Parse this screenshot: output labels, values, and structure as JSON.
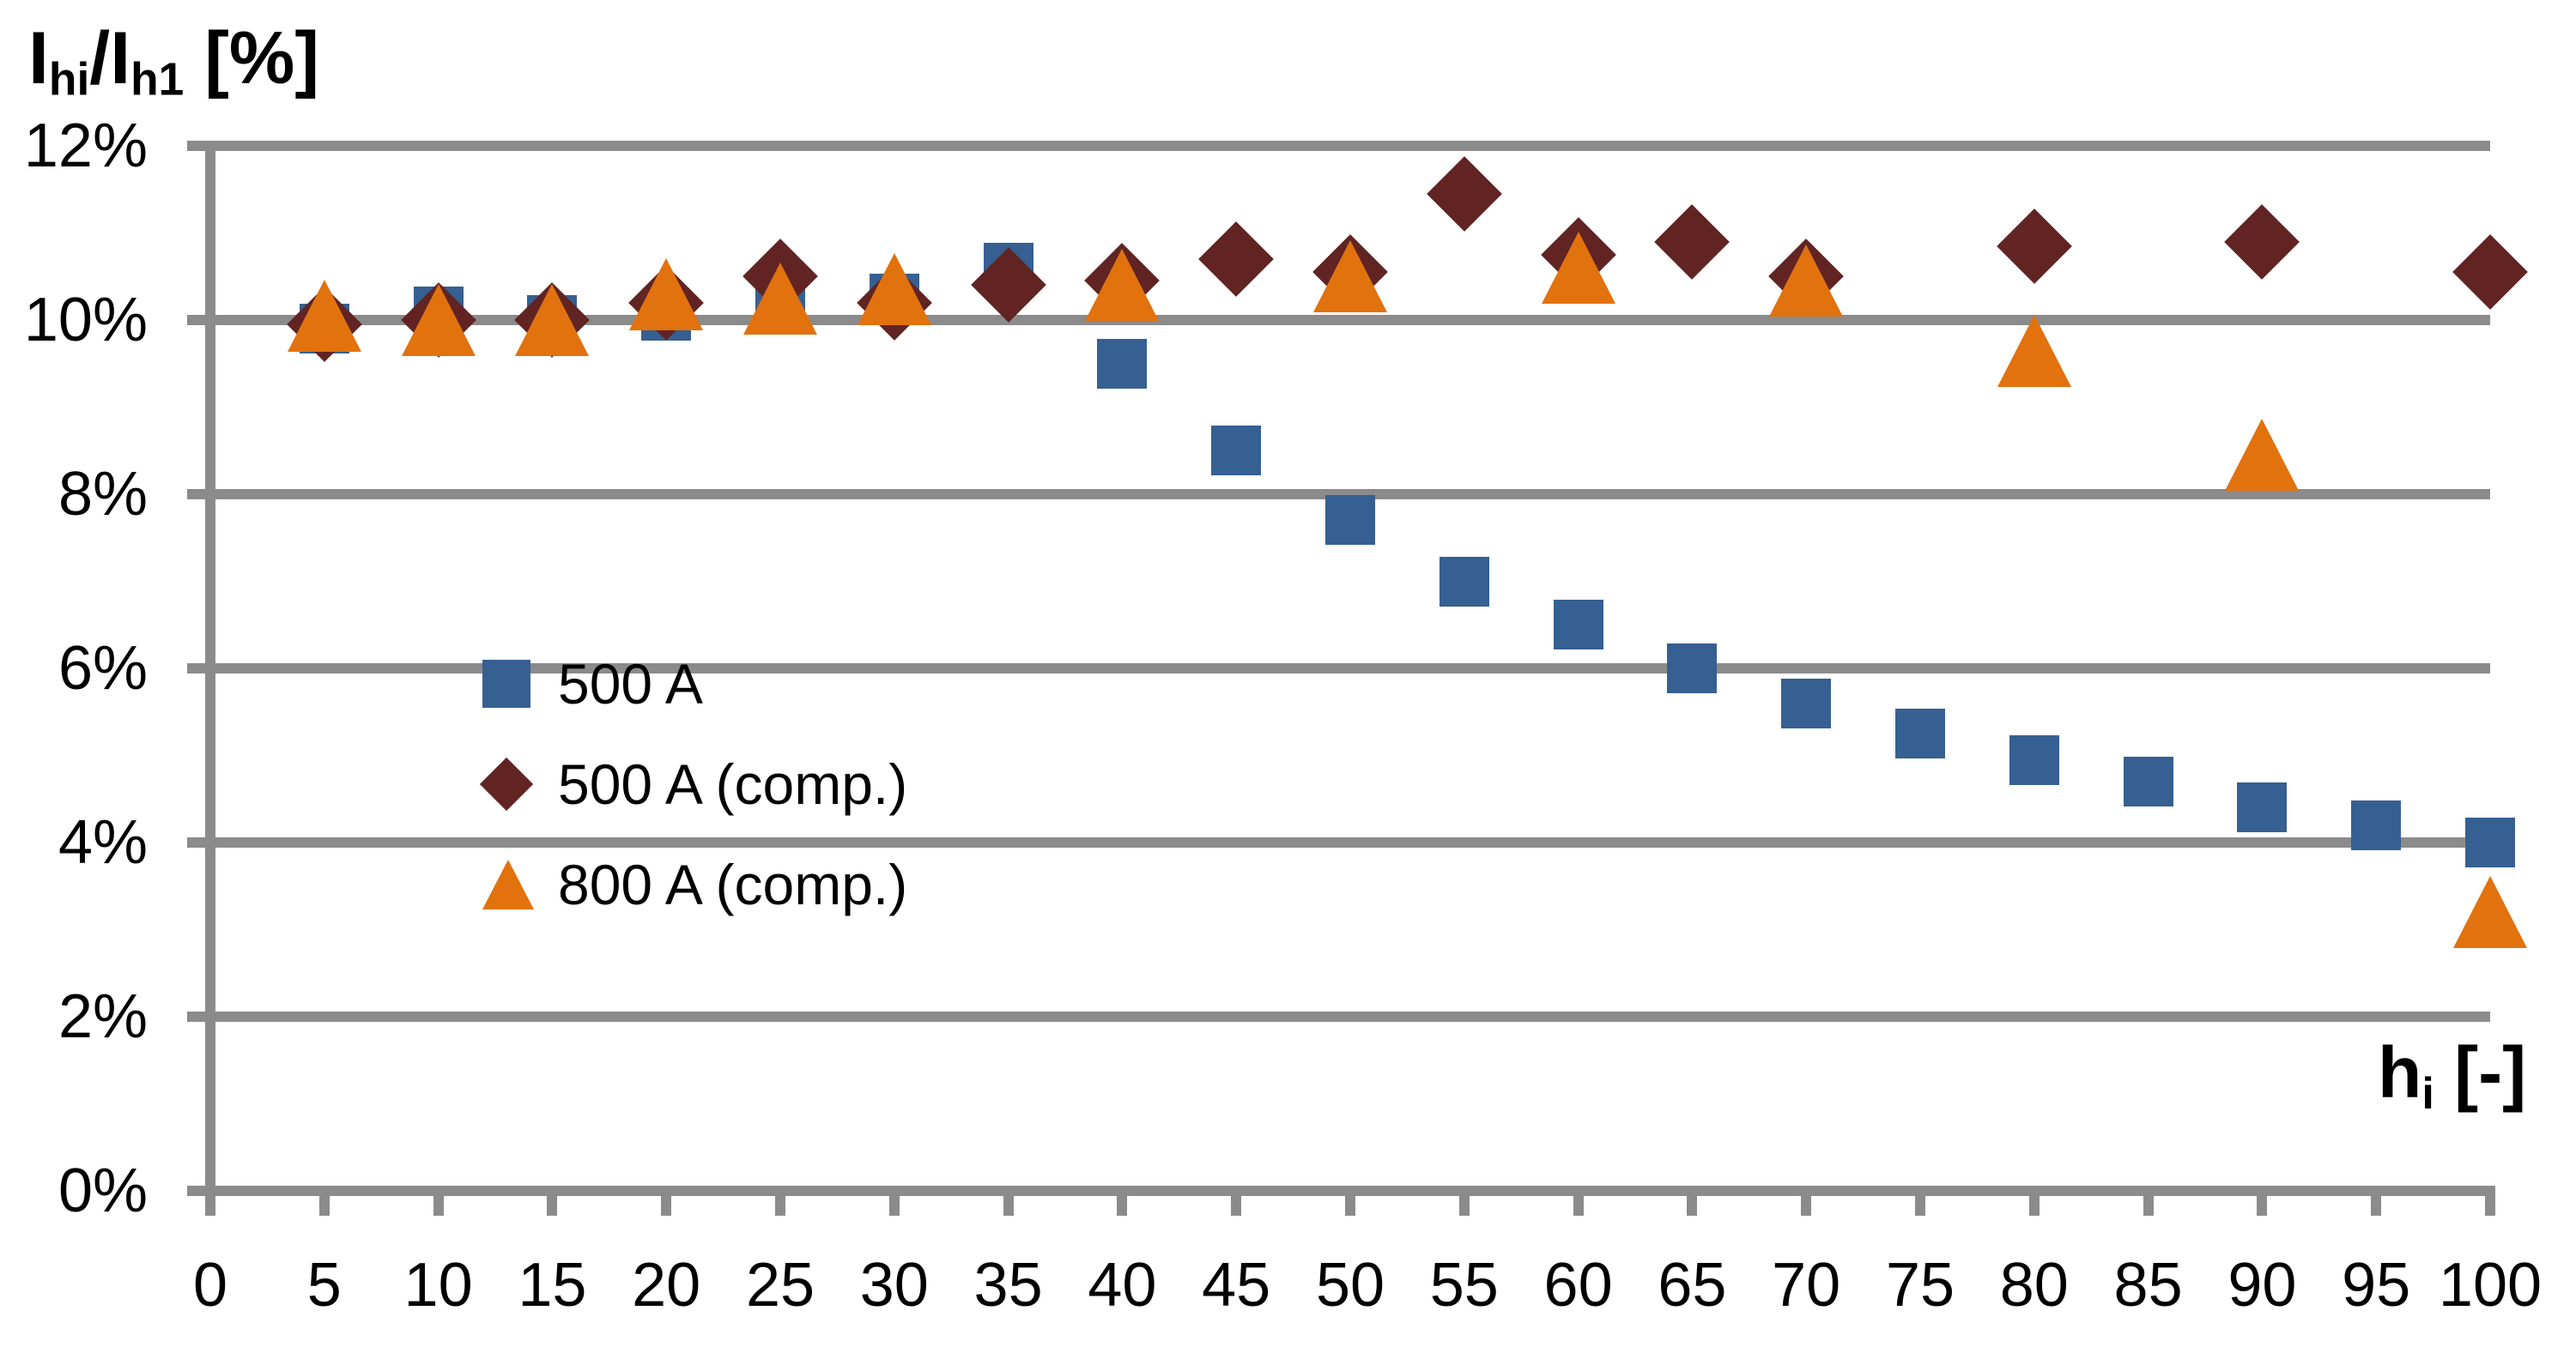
{
  "chart_data": {
    "type": "scatter",
    "title": "",
    "y_axis_title": "Ihi/Ih1 [%]",
    "x_axis_title": "hi [-]",
    "y_title_parts": {
      "base1": "I",
      "sub1": "hi",
      "base2": "/I",
      "sub2": "h1",
      "tail": " [%]"
    },
    "x_title_parts": {
      "base1": "h",
      "sub1": "i",
      "tail": " [-]"
    },
    "xlim": [
      0,
      100
    ],
    "ylim_percent": [
      0,
      12
    ],
    "grid": "horizontal-only",
    "legend_position": "inside-middle-left",
    "colors": {
      "gridline": "#8B8B8B",
      "axis": "#8B8B8B",
      "text": "#000000"
    },
    "x_ticks": [
      {
        "value": 0,
        "label": "0"
      },
      {
        "value": 5,
        "label": "5"
      },
      {
        "value": 10,
        "label": "10"
      },
      {
        "value": 15,
        "label": "15"
      },
      {
        "value": 20,
        "label": "20"
      },
      {
        "value": 25,
        "label": "25"
      },
      {
        "value": 30,
        "label": "30"
      },
      {
        "value": 35,
        "label": "35"
      },
      {
        "value": 40,
        "label": "40"
      },
      {
        "value": 45,
        "label": "45"
      },
      {
        "value": 50,
        "label": "50"
      },
      {
        "value": 55,
        "label": "55"
      },
      {
        "value": 60,
        "label": "60"
      },
      {
        "value": 65,
        "label": "65"
      },
      {
        "value": 70,
        "label": "70"
      },
      {
        "value": 75,
        "label": "75"
      },
      {
        "value": 80,
        "label": "80"
      },
      {
        "value": 85,
        "label": "85"
      },
      {
        "value": 90,
        "label": "90"
      },
      {
        "value": 95,
        "label": "95"
      },
      {
        "value": 100,
        "label": "100"
      }
    ],
    "y_ticks": [
      {
        "value": 0,
        "label": "0%"
      },
      {
        "value": 2,
        "label": "2%"
      },
      {
        "value": 4,
        "label": "4%"
      },
      {
        "value": 6,
        "label": "6%"
      },
      {
        "value": 8,
        "label": "8%"
      },
      {
        "value": 10,
        "label": "10%"
      },
      {
        "value": 12,
        "label": "12%"
      }
    ],
    "series": [
      {
        "name": "500 A",
        "marker": "square",
        "color": "#366091",
        "points": [
          [
            5,
            9.9
          ],
          [
            10,
            10.1
          ],
          [
            15,
            10.0
          ],
          [
            20,
            10.05
          ],
          [
            25,
            10.35
          ],
          [
            30,
            10.25
          ],
          [
            35,
            10.6
          ],
          [
            40,
            9.5
          ],
          [
            45,
            8.5
          ],
          [
            50,
            7.7
          ],
          [
            55,
            7.0
          ],
          [
            60,
            6.5
          ],
          [
            65,
            6.0
          ],
          [
            70,
            5.6
          ],
          [
            75,
            5.25
          ],
          [
            80,
            4.95
          ],
          [
            85,
            4.7
          ],
          [
            90,
            4.4
          ],
          [
            95,
            4.2
          ],
          [
            100,
            4.0
          ]
        ]
      },
      {
        "name": "500 A (comp.)",
        "marker": "diamond",
        "color": "#612423",
        "points": [
          [
            5,
            9.95
          ],
          [
            10,
            10.0
          ],
          [
            15,
            10.0
          ],
          [
            20,
            10.2
          ],
          [
            25,
            10.5
          ],
          [
            30,
            10.2
          ],
          [
            35,
            10.4
          ],
          [
            40,
            10.45
          ],
          [
            45,
            10.7
          ],
          [
            50,
            10.55
          ],
          [
            55,
            11.45
          ],
          [
            60,
            10.75
          ],
          [
            65,
            10.9
          ],
          [
            70,
            10.5
          ],
          [
            80,
            10.85
          ],
          [
            90,
            10.9
          ],
          [
            100,
            10.55
          ]
        ]
      },
      {
        "name": "800 A (comp.)",
        "marker": "triangle",
        "color": "#E1720E",
        "points": [
          [
            5,
            10.05
          ],
          [
            10,
            10.0
          ],
          [
            15,
            10.0
          ],
          [
            20,
            10.3
          ],
          [
            25,
            10.25
          ],
          [
            30,
            10.35
          ],
          [
            40,
            10.4
          ],
          [
            50,
            10.5
          ],
          [
            60,
            10.6
          ],
          [
            70,
            10.45
          ],
          [
            80,
            9.65
          ],
          [
            90,
            8.45
          ],
          [
            100,
            3.2
          ]
        ]
      }
    ]
  }
}
